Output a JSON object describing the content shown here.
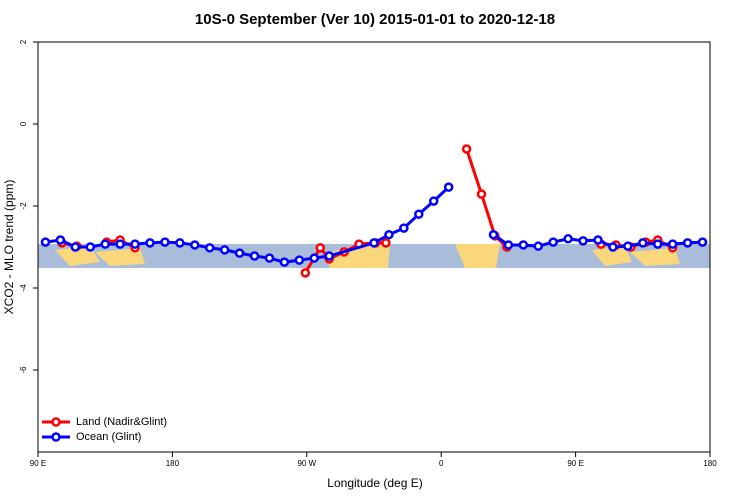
{
  "chart_data": {
    "type": "line",
    "title": "10S-0 September (Ver 10)   2015-01-01 to 2020-12-18",
    "xlabel": "Longitude (deg E)",
    "ylabel": "XCO2 - MLO trend (ppm)",
    "xlim": [
      90,
      540
    ],
    "ylim": [
      -8,
      2
    ],
    "xticks": [
      {
        "value": 90,
        "label": "90 E"
      },
      180,
      {
        "value": 270,
        "label": "90 W"
      },
      {
        "value": 360,
        "label": "0"
      },
      {
        "value": 450,
        "label": "90 E"
      },
      {
        "value": 540,
        "label": "180"
      }
    ],
    "yticks": [
      2,
      0,
      -2,
      -4,
      -6
    ],
    "legend": "bottom-left",
    "series": [
      {
        "name": "Land (Nadir&Glint)",
        "color": "#ff0000",
        "x": [
          106,
          116,
          125,
          136,
          145,
          155,
          200,
          269,
          279,
          285,
          295,
          305,
          316,
          323,
          350,
          377,
          387,
          396,
          404,
          440,
          467,
          477,
          487,
          497,
          505,
          515
        ],
        "values": [
          -2.9,
          -2.98,
          null,
          -2.88,
          -2.83,
          -3.02,
          null,
          -3.63,
          -3.02,
          -3.29,
          -3.12,
          -2.93,
          -2.9,
          -2.9,
          null,
          -0.61,
          -1.71,
          -2.73,
          -3.0,
          null,
          -2.93,
          -2.95,
          -3.0,
          -2.88,
          -2.83,
          -3.02
        ]
      },
      {
        "name": "Ocean (Glint)",
        "color": "#0000ff",
        "x": [
          95,
          105,
          115,
          125,
          135,
          145,
          155,
          165,
          175,
          185,
          195,
          205,
          215,
          225,
          235,
          245,
          255,
          265,
          275,
          285,
          315,
          325,
          335,
          345,
          355,
          365,
          380,
          395,
          405,
          415,
          425,
          435,
          445,
          455,
          465,
          475,
          485,
          495,
          505,
          515,
          525,
          535
        ],
        "values": [
          -2.88,
          -2.83,
          -3.0,
          -3.0,
          -2.93,
          -2.93,
          -2.93,
          -2.9,
          -2.88,
          -2.9,
          -2.95,
          -3.02,
          -3.07,
          -3.15,
          -3.22,
          -3.27,
          -3.37,
          -3.32,
          -3.27,
          -3.22,
          -2.9,
          -2.7,
          -2.54,
          -2.2,
          -1.88,
          -1.54,
          null,
          -2.7,
          -2.95,
          -2.95,
          -2.98,
          -2.88,
          -2.8,
          -2.85,
          -2.83,
          -3.0,
          -2.98,
          -2.9,
          -2.93,
          -2.93,
          -2.9,
          -2.88
        ]
      }
    ]
  }
}
